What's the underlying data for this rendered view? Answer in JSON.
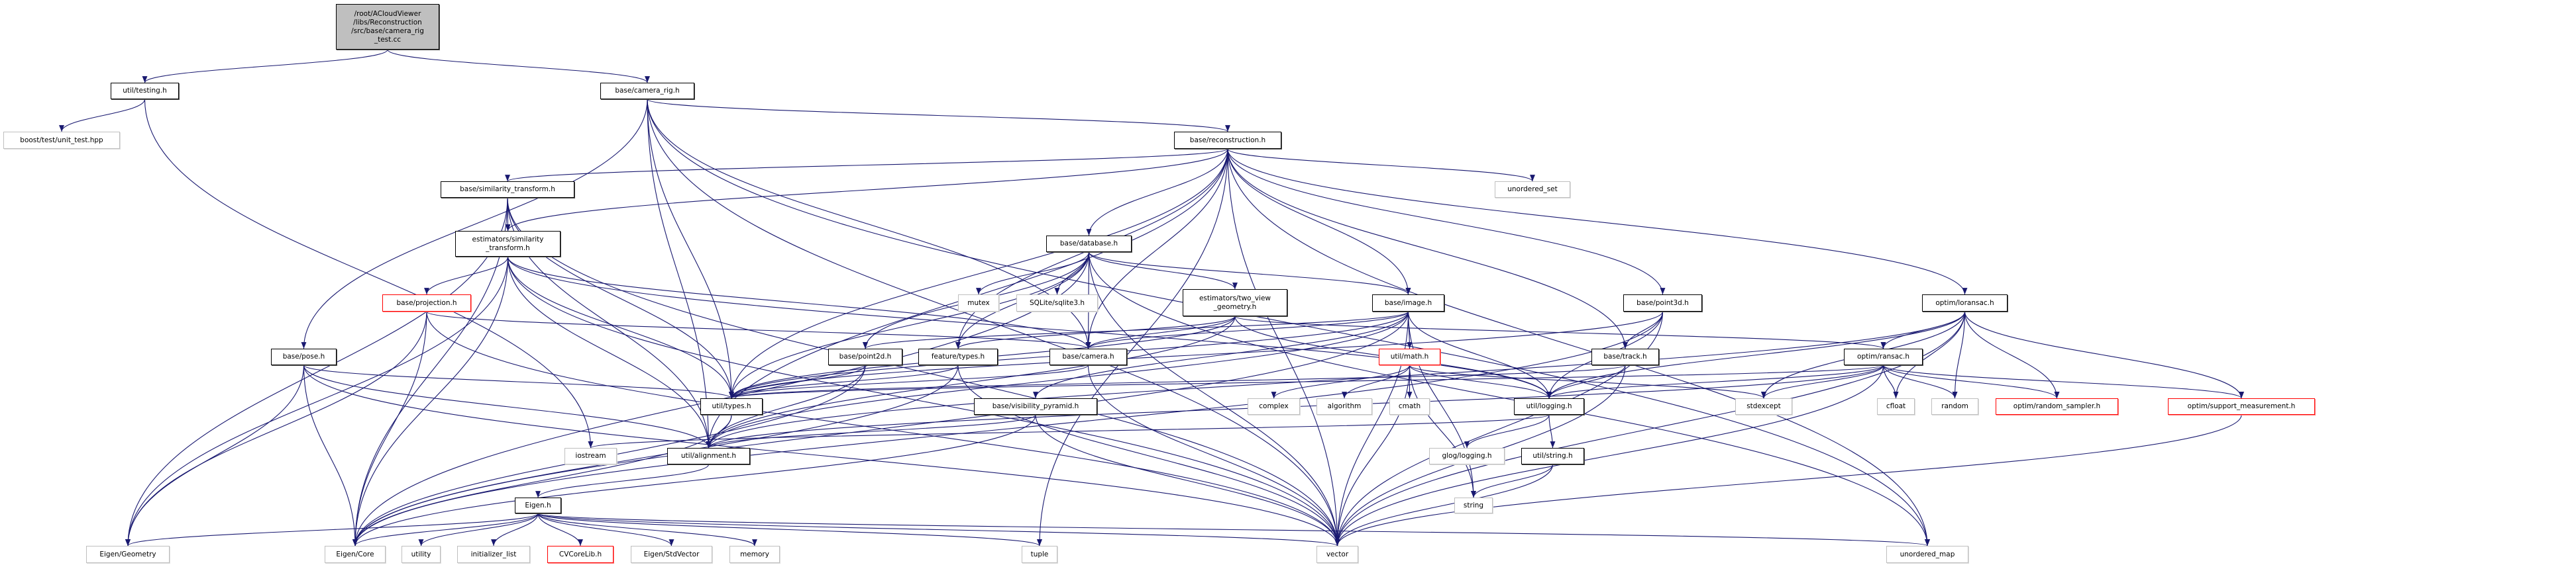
{
  "colors": {
    "edge": "#191970",
    "root_fill": "#bfbfbf",
    "external_border": "#bfbfbf",
    "truncated_border": "#ff0000"
  },
  "nodes": [
    {
      "id": "root",
      "label": "/root/ACloudViewer\n/libs/Reconstruction\n/src/base/camera_rig\n_test.cc",
      "kind": "root"
    },
    {
      "id": "testing",
      "label": "util/testing.h",
      "kind": "normal"
    },
    {
      "id": "boost",
      "label": "boost/test/unit_test.hpp",
      "kind": "external"
    },
    {
      "id": "camera_rig",
      "label": "base/camera_rig.h",
      "kind": "normal"
    },
    {
      "id": "reconstruction",
      "label": "base/reconstruction.h",
      "kind": "normal"
    },
    {
      "id": "unordered_set",
      "label": "unordered_set",
      "kind": "external"
    },
    {
      "id": "sim_tf",
      "label": "base/similarity_transform.h",
      "kind": "normal"
    },
    {
      "id": "est_sim_tf",
      "label": "estimators/similarity\n_transform.h",
      "kind": "normal"
    },
    {
      "id": "database",
      "label": "base/database.h",
      "kind": "normal"
    },
    {
      "id": "projection",
      "label": "base/projection.h",
      "kind": "truncated"
    },
    {
      "id": "mutex",
      "label": "mutex",
      "kind": "external"
    },
    {
      "id": "sqlite",
      "label": "SQLite/sqlite3.h",
      "kind": "external"
    },
    {
      "id": "two_view",
      "label": "estimators/two_view\n_geometry.h",
      "kind": "normal"
    },
    {
      "id": "image",
      "label": "base/image.h",
      "kind": "normal"
    },
    {
      "id": "point3d",
      "label": "base/point3d.h",
      "kind": "normal"
    },
    {
      "id": "loransac",
      "label": "optim/loransac.h",
      "kind": "normal"
    },
    {
      "id": "pose",
      "label": "base/pose.h",
      "kind": "normal"
    },
    {
      "id": "point2d",
      "label": "base/point2d.h",
      "kind": "normal"
    },
    {
      "id": "feature_types",
      "label": "feature/types.h",
      "kind": "normal"
    },
    {
      "id": "camera",
      "label": "base/camera.h",
      "kind": "normal"
    },
    {
      "id": "math",
      "label": "util/math.h",
      "kind": "truncated"
    },
    {
      "id": "track",
      "label": "base/track.h",
      "kind": "normal"
    },
    {
      "id": "ransac",
      "label": "optim/ransac.h",
      "kind": "normal"
    },
    {
      "id": "types",
      "label": "util/types.h",
      "kind": "normal"
    },
    {
      "id": "vis_pyr",
      "label": "base/visibility_pyramid.h",
      "kind": "normal"
    },
    {
      "id": "complex",
      "label": "complex",
      "kind": "external"
    },
    {
      "id": "algorithm",
      "label": "algorithm",
      "kind": "external"
    },
    {
      "id": "cmath",
      "label": "cmath",
      "kind": "external"
    },
    {
      "id": "logging",
      "label": "util/logging.h",
      "kind": "normal"
    },
    {
      "id": "stdexcept",
      "label": "stdexcept",
      "kind": "external"
    },
    {
      "id": "cfloat",
      "label": "cfloat",
      "kind": "external"
    },
    {
      "id": "random",
      "label": "random",
      "kind": "external"
    },
    {
      "id": "random_sampler",
      "label": "optim/random_sampler.h",
      "kind": "truncated"
    },
    {
      "id": "support",
      "label": "optim/support_measurement.h",
      "kind": "truncated"
    },
    {
      "id": "iostream",
      "label": "iostream",
      "kind": "external"
    },
    {
      "id": "alignment",
      "label": "util/alignment.h",
      "kind": "normal"
    },
    {
      "id": "glog",
      "label": "glog/logging.h",
      "kind": "external"
    },
    {
      "id": "string_h",
      "label": "util/string.h",
      "kind": "normal"
    },
    {
      "id": "eigen_h",
      "label": "Eigen.h",
      "kind": "normal"
    },
    {
      "id": "string",
      "label": "string",
      "kind": "external"
    },
    {
      "id": "geometry",
      "label": "Eigen/Geometry",
      "kind": "external"
    },
    {
      "id": "core",
      "label": "Eigen/Core",
      "kind": "external"
    },
    {
      "id": "utility",
      "label": "utility",
      "kind": "external"
    },
    {
      "id": "init_list",
      "label": "initializer_list",
      "kind": "external"
    },
    {
      "id": "cvcorelib",
      "label": "CVCoreLib.h",
      "kind": "truncated"
    },
    {
      "id": "stdvector",
      "label": "Eigen/StdVector",
      "kind": "external"
    },
    {
      "id": "memory",
      "label": "memory",
      "kind": "external"
    },
    {
      "id": "tuple",
      "label": "tuple",
      "kind": "external"
    },
    {
      "id": "vector",
      "label": "vector",
      "kind": "external"
    },
    {
      "id": "unordered_map",
      "label": "unordered_map",
      "kind": "external"
    }
  ],
  "edges": [
    [
      "root",
      "testing"
    ],
    [
      "root",
      "camera_rig"
    ],
    [
      "testing",
      "boost"
    ],
    [
      "testing",
      "iostream"
    ],
    [
      "camera_rig",
      "reconstruction"
    ],
    [
      "camera_rig",
      "camera"
    ],
    [
      "camera_rig",
      "pose"
    ],
    [
      "camera_rig",
      "types"
    ],
    [
      "camera_rig",
      "alignment"
    ],
    [
      "camera_rig",
      "unordered_map"
    ],
    [
      "camera_rig",
      "vector"
    ],
    [
      "reconstruction",
      "sim_tf"
    ],
    [
      "reconstruction",
      "est_sim_tf"
    ],
    [
      "reconstruction",
      "database"
    ],
    [
      "reconstruction",
      "image"
    ],
    [
      "reconstruction",
      "point3d"
    ],
    [
      "reconstruction",
      "track"
    ],
    [
      "reconstruction",
      "camera"
    ],
    [
      "reconstruction",
      "feature_types"
    ],
    [
      "reconstruction",
      "types"
    ],
    [
      "reconstruction",
      "alignment"
    ],
    [
      "reconstruction",
      "loransac"
    ],
    [
      "reconstruction",
      "unordered_set"
    ],
    [
      "reconstruction",
      "vector"
    ],
    [
      "reconstruction",
      "tuple"
    ],
    [
      "reconstruction",
      "unordered_map"
    ],
    [
      "sim_tf",
      "est_sim_tf"
    ],
    [
      "sim_tf",
      "core"
    ],
    [
      "sim_tf",
      "geometry"
    ],
    [
      "sim_tf",
      "alignment"
    ],
    [
      "sim_tf",
      "types"
    ],
    [
      "sim_tf",
      "vector"
    ],
    [
      "est_sim_tf",
      "projection"
    ],
    [
      "est_sim_tf",
      "core"
    ],
    [
      "est_sim_tf",
      "geometry"
    ],
    [
      "est_sim_tf",
      "alignment"
    ],
    [
      "est_sim_tf",
      "types"
    ],
    [
      "est_sim_tf",
      "vector"
    ],
    [
      "est_sim_tf",
      "logging"
    ],
    [
      "est_sim_tf",
      "camera"
    ],
    [
      "projection",
      "core"
    ],
    [
      "projection",
      "geometry"
    ],
    [
      "projection",
      "camera"
    ],
    [
      "projection",
      "vector"
    ],
    [
      "pose",
      "core"
    ],
    [
      "pose",
      "types"
    ],
    [
      "pose",
      "alignment"
    ],
    [
      "pose",
      "vector"
    ],
    [
      "pose",
      "geometry"
    ],
    [
      "database",
      "mutex"
    ],
    [
      "database",
      "sqlite"
    ],
    [
      "database",
      "two_view"
    ],
    [
      "database",
      "camera"
    ],
    [
      "database",
      "image"
    ],
    [
      "database",
      "point2d"
    ],
    [
      "database",
      "feature_types"
    ],
    [
      "database",
      "types"
    ],
    [
      "database",
      "core"
    ],
    [
      "database",
      "vector"
    ],
    [
      "database",
      "unordered_map"
    ],
    [
      "two_view",
      "camera"
    ],
    [
      "two_view",
      "feature_types"
    ],
    [
      "two_view",
      "alignment"
    ],
    [
      "two_view",
      "logging"
    ],
    [
      "two_view",
      "ransac"
    ],
    [
      "two_view",
      "types"
    ],
    [
      "image",
      "point2d"
    ],
    [
      "image",
      "camera"
    ],
    [
      "image",
      "vis_pyr"
    ],
    [
      "image",
      "math"
    ],
    [
      "image",
      "logging"
    ],
    [
      "image",
      "types"
    ],
    [
      "image",
      "alignment"
    ],
    [
      "image",
      "string"
    ],
    [
      "image",
      "vector"
    ],
    [
      "image",
      "core"
    ],
    [
      "point2d",
      "types"
    ],
    [
      "point2d",
      "alignment"
    ],
    [
      "point2d",
      "core"
    ],
    [
      "feature_types",
      "types"
    ],
    [
      "feature_types",
      "core"
    ],
    [
      "feature_types",
      "vector"
    ],
    [
      "camera",
      "types"
    ],
    [
      "camera",
      "vector"
    ],
    [
      "math",
      "complex"
    ],
    [
      "math",
      "algorithm"
    ],
    [
      "math",
      "cmath"
    ],
    [
      "math",
      "logging"
    ],
    [
      "math",
      "vector"
    ],
    [
      "math",
      "stdexcept"
    ],
    [
      "math",
      "string"
    ],
    [
      "track",
      "types"
    ],
    [
      "track",
      "logging"
    ],
    [
      "track",
      "vector"
    ],
    [
      "point3d",
      "track"
    ],
    [
      "point3d",
      "types"
    ],
    [
      "point3d",
      "logging"
    ],
    [
      "point3d",
      "vector"
    ],
    [
      "point3d",
      "core"
    ],
    [
      "vis_pyr",
      "alignment"
    ],
    [
      "vis_pyr",
      "core"
    ],
    [
      "vis_pyr",
      "vector"
    ],
    [
      "types",
      "alignment"
    ],
    [
      "types",
      "core"
    ],
    [
      "alignment",
      "eigen_h"
    ],
    [
      "logging",
      "glog"
    ],
    [
      "logging",
      "string_h"
    ],
    [
      "logging",
      "iostream"
    ],
    [
      "string_h",
      "string"
    ],
    [
      "string_h",
      "vector"
    ],
    [
      "eigen_h",
      "geometry"
    ],
    [
      "eigen_h",
      "core"
    ],
    [
      "eigen_h",
      "utility"
    ],
    [
      "eigen_h",
      "init_list"
    ],
    [
      "eigen_h",
      "cvcorelib"
    ],
    [
      "eigen_h",
      "stdvector"
    ],
    [
      "eigen_h",
      "memory"
    ],
    [
      "eigen_h",
      "tuple"
    ],
    [
      "eigen_h",
      "vector"
    ],
    [
      "eigen_h",
      "unordered_map"
    ],
    [
      "loransac",
      "ransac"
    ],
    [
      "loransac",
      "stdexcept"
    ],
    [
      "loransac",
      "cfloat"
    ],
    [
      "loransac",
      "random"
    ],
    [
      "loransac",
      "random_sampler"
    ],
    [
      "loransac",
      "support"
    ],
    [
      "loransac",
      "vector"
    ],
    [
      "loransac",
      "alignment"
    ],
    [
      "loransac",
      "logging"
    ],
    [
      "ransac",
      "stdexcept"
    ],
    [
      "ransac",
      "cfloat"
    ],
    [
      "ransac",
      "random"
    ],
    [
      "ransac",
      "random_sampler"
    ],
    [
      "ransac",
      "support"
    ],
    [
      "ransac",
      "alignment"
    ],
    [
      "ransac",
      "logging"
    ],
    [
      "ransac",
      "vector"
    ],
    [
      "ransac",
      "types"
    ],
    [
      "support",
      "vector"
    ]
  ]
}
